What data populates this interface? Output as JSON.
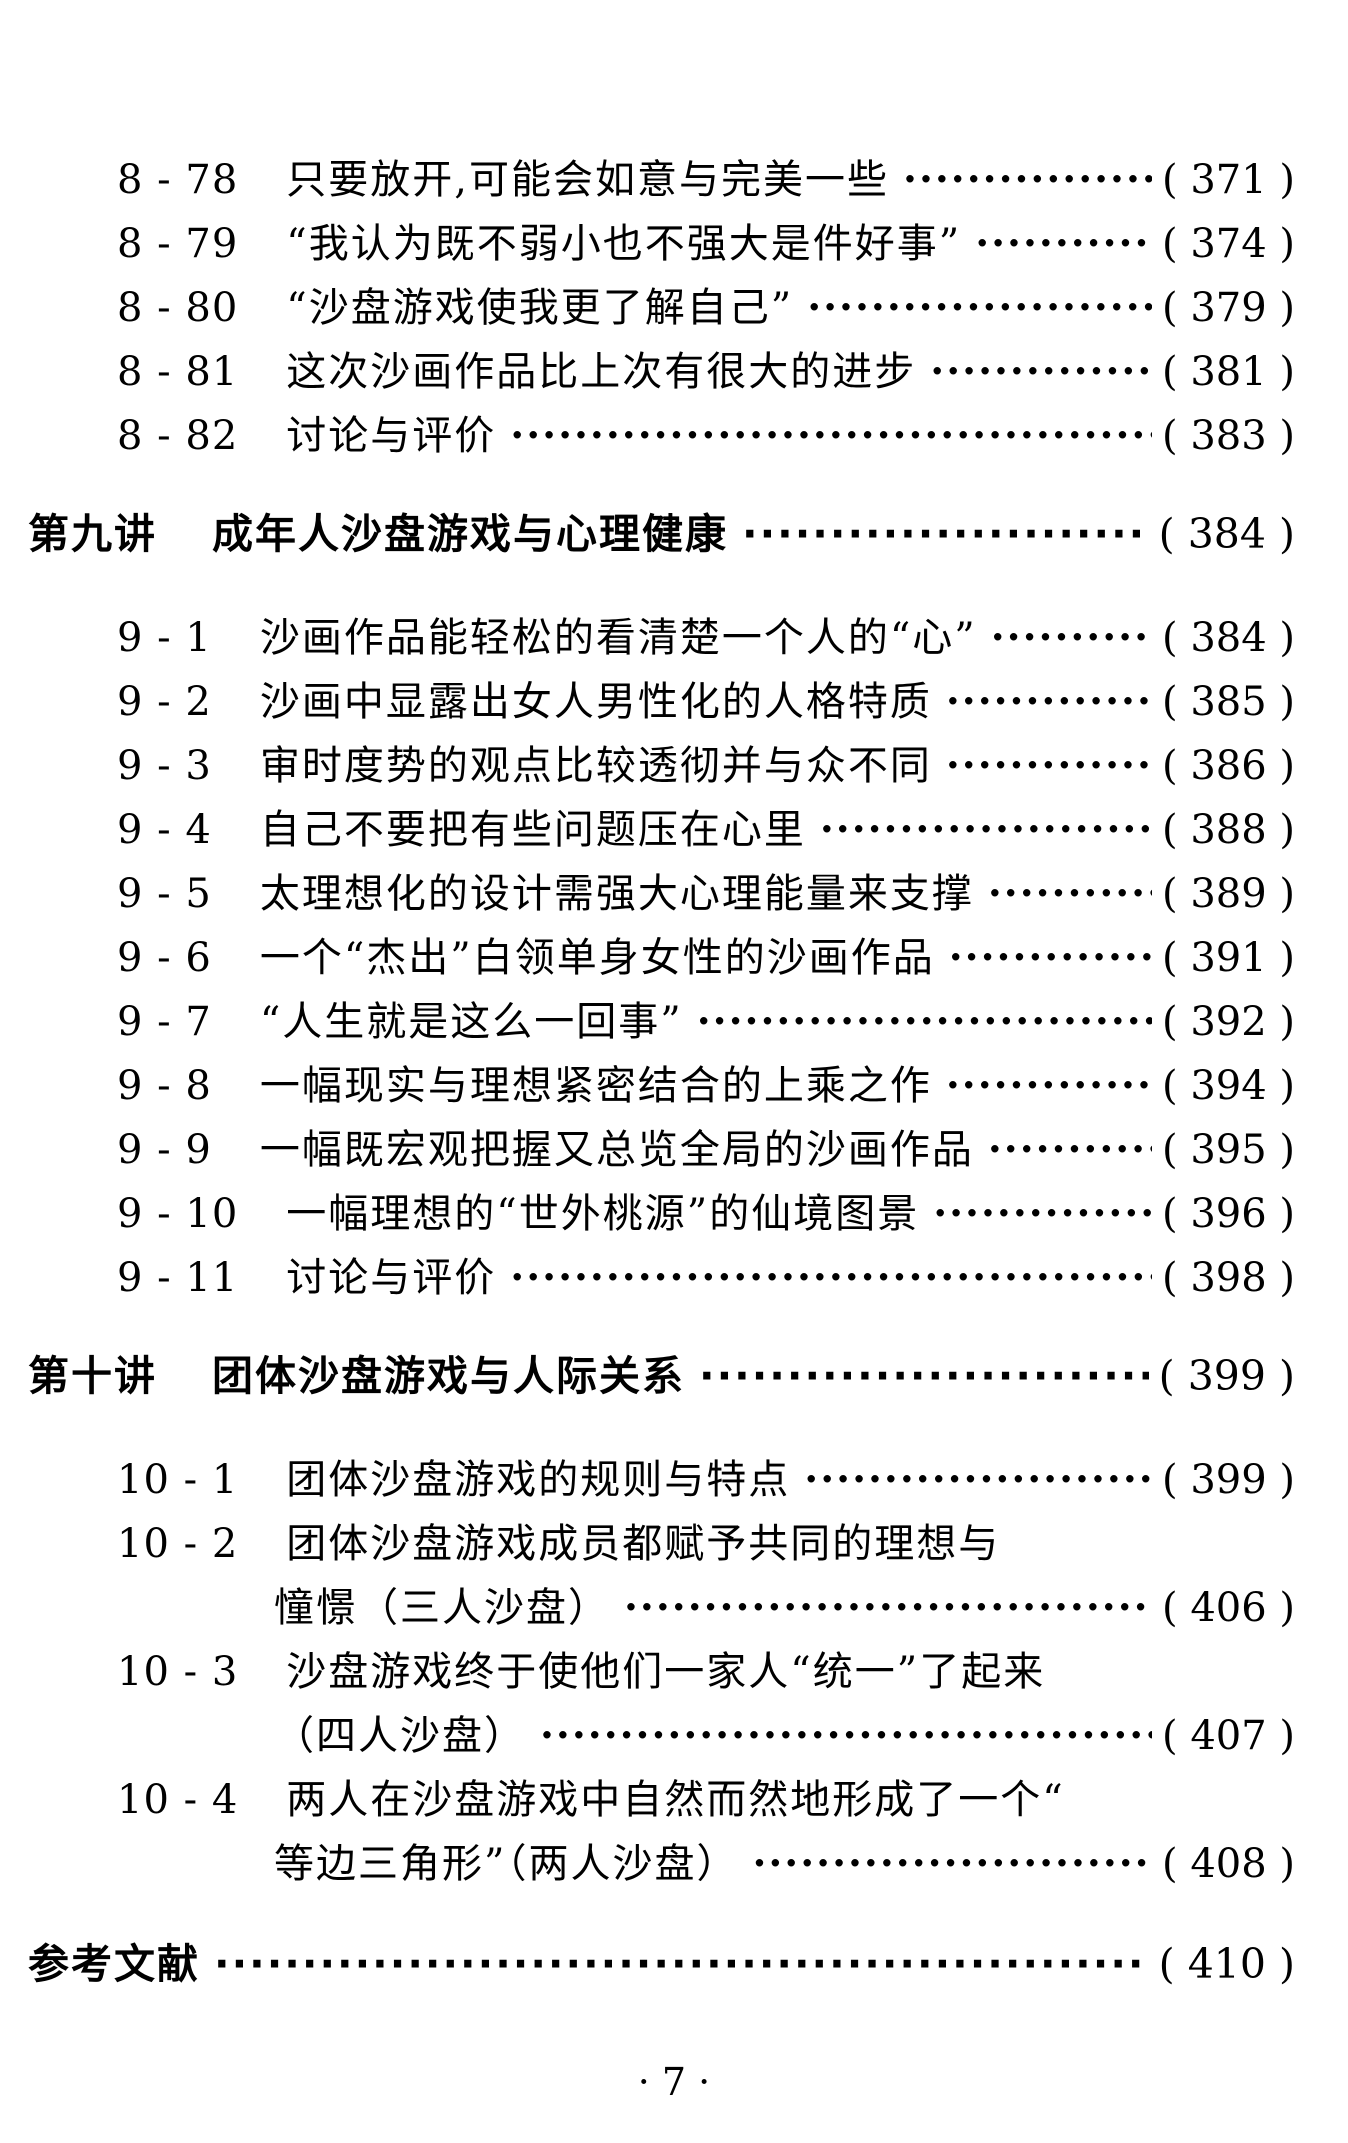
{
  "toc": {
    "sections": [
      {
        "type": "entries",
        "items": [
          {
            "num": "8 - 78",
            "title": "只要放开,可能会如意与完美一些",
            "page": "371"
          },
          {
            "num": "8 - 79",
            "title": "“我认为既不弱小也不强大是件好事”",
            "page": "374"
          },
          {
            "num": "8 - 80",
            "title": "“沙盘游戏使我更了解自己”",
            "page": "379"
          },
          {
            "num": "8 - 81",
            "title": "这次沙画作品比上次有很大的进步",
            "page": "381"
          },
          {
            "num": "8 - 82",
            "title": "讨论与评价",
            "page": "383"
          }
        ]
      },
      {
        "type": "chapter",
        "label": "第九讲",
        "title": "成年人沙盘游戏与心理健康",
        "page": "384"
      },
      {
        "type": "entries",
        "items": [
          {
            "num": "9 - 1",
            "title": "沙画作品能轻松的看清楚一个人的“心”",
            "page": "384"
          },
          {
            "num": "9 - 2",
            "title": "沙画中显露出女人男性化的人格特质",
            "page": "385"
          },
          {
            "num": "9 - 3",
            "title": "审时度势的观点比较透彻并与众不同",
            "page": "386"
          },
          {
            "num": "9 - 4",
            "title": "自己不要把有些问题压在心里",
            "page": "388"
          },
          {
            "num": "9 - 5",
            "title": "太理想化的设计需强大心理能量来支撑",
            "page": "389"
          },
          {
            "num": "9 - 6",
            "title": "一个“杰出”白领单身女性的沙画作品",
            "page": "391"
          },
          {
            "num": "9 - 7",
            "title": "“人生就是这么一回事”",
            "page": "392"
          },
          {
            "num": "9 - 8",
            "title": "一幅现实与理想紧密结合的上乘之作",
            "page": "394"
          },
          {
            "num": "9 - 9",
            "title": "一幅既宏观把握又总览全局的沙画作品",
            "page": "395"
          },
          {
            "num": "9 - 10",
            "title": "一幅理想的“世外桃源”的仙境图景",
            "page": "396"
          },
          {
            "num": "9 - 11",
            "title": "讨论与评价",
            "page": "398"
          }
        ]
      },
      {
        "type": "chapter",
        "label": "第十讲",
        "title": "团体沙盘游戏与人际关系",
        "page": "399"
      },
      {
        "type": "entries",
        "items": [
          {
            "num": "10 - 1",
            "title": "团体沙盘游戏的规则与特点",
            "page": "399"
          },
          {
            "num": "10 - 2",
            "title": "团体沙盘游戏成员都赋予共同的理想与",
            "title2": "憧憬（三人沙盘）",
            "page": "406"
          },
          {
            "num": "10 - 3",
            "title": "沙盘游戏终于使他们一家人“统一”了起来",
            "title2": "（四人沙盘）",
            "page": "407"
          },
          {
            "num": "10 - 4",
            "title": "两人在沙盘游戏中自然而然地形成了一个“",
            "title2": "等边三角形”（两人沙盘）",
            "page": "408"
          }
        ]
      },
      {
        "type": "ref",
        "title": "参考文献",
        "page": "410"
      }
    ]
  },
  "footer": {
    "page_number": "7"
  }
}
